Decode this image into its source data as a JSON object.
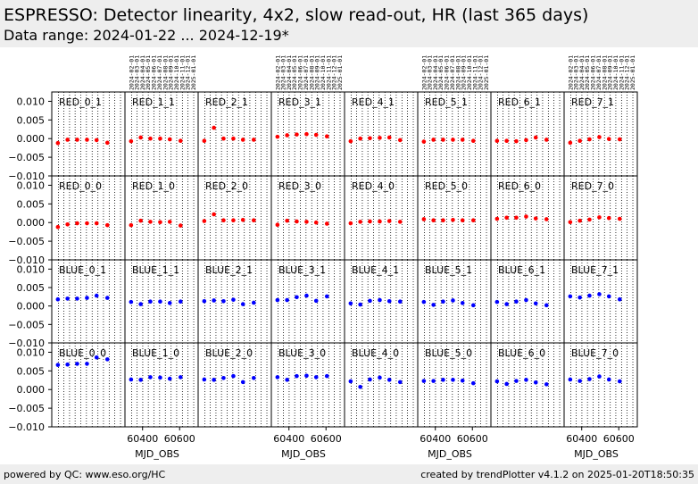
{
  "page": {
    "title": "ESPRESSO: Detector linearity, 4x2, slow read-out, HR (last 365 days)",
    "subtitle": "Data range: 2024-01-22 ... 2024-12-19*",
    "footer_left": "powered by QC: www.eso.org/HC",
    "footer_right": "created by trendPlotter v4.1.2 on 2025-01-20T18:50:35"
  },
  "colors": {
    "red_series": "#ff0000",
    "blue_series": "#0000ff",
    "header_bg": "#eeeeee"
  },
  "chart_data": {
    "type": "scatter",
    "layout": "grid 4 rows x 8 columns, shared axes",
    "xlabel": "MJD_OBS",
    "x_ticks": [
      60400,
      60600
    ],
    "x_tick_labels": [
      "60400",
      "60600"
    ],
    "xlim": [
      60305,
      60700
    ],
    "ylim": [
      -0.01,
      0.0125
    ],
    "y_ticks": [
      -0.01,
      -0.005,
      0.0,
      0.005,
      0.01
    ],
    "y_tick_labels": [
      "−0.010",
      "−0.005",
      "0.000",
      "0.005",
      "0.010"
    ],
    "grid": "vertical dotted lines",
    "date_ticks": [
      "2024-02-01",
      "2024-03-01",
      "2024-04-01",
      "2024-05-01",
      "2024-06-01",
      "2024-07-01",
      "2024-08-01",
      "2024-09-01",
      "2024-10-01",
      "2024-11-01",
      "2024-12-01",
      "2025-01-01",
      "2025-02-01"
    ],
    "date_tick_mjd": [
      60341,
      60370,
      60401,
      60431,
      60462,
      60492,
      60523,
      60554,
      60584,
      60615,
      60645,
      60676,
      60707
    ],
    "x": [
      60338,
      60390,
      60442,
      60495,
      60547,
      60605
    ],
    "panels": [
      {
        "label": "RED_0_1",
        "row": 0,
        "col": 0,
        "color": "red",
        "y": [
          -0.0012,
          -0.0003,
          -0.0003,
          -0.0003,
          -0.0004,
          -0.0011
        ]
      },
      {
        "label": "RED_1_1",
        "row": 0,
        "col": 1,
        "color": "red",
        "y": [
          -0.0007,
          0.0003,
          0.0,
          0.0,
          -0.0002,
          -0.0006
        ]
      },
      {
        "label": "RED_2_1",
        "row": 0,
        "col": 2,
        "color": "red",
        "y": [
          -0.0006,
          0.0029,
          0.0,
          0.0,
          -0.0003,
          -0.0003
        ]
      },
      {
        "label": "RED_3_1",
        "row": 0,
        "col": 3,
        "color": "red",
        "y": [
          0.0005,
          0.0009,
          0.0011,
          0.0012,
          0.001,
          0.0006
        ]
      },
      {
        "label": "RED_4_1",
        "row": 0,
        "col": 4,
        "color": "red",
        "y": [
          -0.0007,
          0.0,
          0.0001,
          0.0002,
          0.0003,
          -0.0004
        ]
      },
      {
        "label": "RED_5_1",
        "row": 0,
        "col": 5,
        "color": "red",
        "y": [
          -0.0008,
          -0.0003,
          -0.0003,
          -0.0003,
          -0.0003,
          -0.0006
        ]
      },
      {
        "label": "RED_6_1",
        "row": 0,
        "col": 6,
        "color": "red",
        "y": [
          -0.0006,
          -0.0006,
          -0.0007,
          -0.0004,
          0.0003,
          -0.0003
        ]
      },
      {
        "label": "RED_7_1",
        "row": 0,
        "col": 7,
        "color": "red",
        "y": [
          -0.0011,
          -0.0006,
          -0.0002,
          0.0004,
          -0.0001,
          -0.0002
        ]
      },
      {
        "label": "RED_0_0",
        "row": 1,
        "col": 0,
        "color": "red",
        "y": [
          -0.0012,
          -0.0005,
          -0.0002,
          -0.0002,
          -0.0002,
          -0.0007
        ]
      },
      {
        "label": "RED_1_0",
        "row": 1,
        "col": 1,
        "color": "red",
        "y": [
          -0.0007,
          0.0005,
          0.0002,
          0.0001,
          0.0002,
          -0.0008
        ]
      },
      {
        "label": "RED_2_0",
        "row": 1,
        "col": 2,
        "color": "red",
        "y": [
          0.0004,
          0.0022,
          0.0006,
          0.0006,
          0.0007,
          0.0006
        ]
      },
      {
        "label": "RED_3_0",
        "row": 1,
        "col": 3,
        "color": "red",
        "y": [
          -0.0006,
          0.0005,
          0.0003,
          0.0002,
          0.0,
          -0.0003
        ]
      },
      {
        "label": "RED_4_0",
        "row": 1,
        "col": 4,
        "color": "red",
        "y": [
          -0.0002,
          0.0002,
          0.0003,
          0.0003,
          0.0004,
          0.0002
        ]
      },
      {
        "label": "RED_5_0",
        "row": 1,
        "col": 5,
        "color": "red",
        "y": [
          0.0009,
          0.0006,
          0.0006,
          0.0007,
          0.0006,
          0.0006
        ]
      },
      {
        "label": "RED_6_0",
        "row": 1,
        "col": 6,
        "color": "red",
        "y": [
          0.001,
          0.0013,
          0.0013,
          0.0016,
          0.0011,
          0.0009
        ]
      },
      {
        "label": "RED_7_0",
        "row": 1,
        "col": 7,
        "color": "red",
        "y": [
          0.0001,
          0.0005,
          0.0008,
          0.0014,
          0.0012,
          0.001
        ]
      },
      {
        "label": "BLUE_0_1",
        "row": 2,
        "col": 0,
        "color": "blue",
        "y": [
          0.0018,
          0.002,
          0.002,
          0.0022,
          0.0028,
          0.0022
        ]
      },
      {
        "label": "BLUE_1_1",
        "row": 2,
        "col": 1,
        "color": "blue",
        "y": [
          0.0011,
          0.0005,
          0.0012,
          0.0012,
          0.0008,
          0.0012
        ]
      },
      {
        "label": "BLUE_2_1",
        "row": 2,
        "col": 2,
        "color": "blue",
        "y": [
          0.0013,
          0.0015,
          0.0013,
          0.0017,
          0.0005,
          0.0009
        ]
      },
      {
        "label": "BLUE_3_1",
        "row": 2,
        "col": 3,
        "color": "blue",
        "y": [
          0.0016,
          0.0016,
          0.0024,
          0.0028,
          0.0014,
          0.0026
        ]
      },
      {
        "label": "BLUE_4_1",
        "row": 2,
        "col": 4,
        "color": "blue",
        "y": [
          0.0007,
          0.0004,
          0.0014,
          0.0016,
          0.0013,
          0.0012
        ]
      },
      {
        "label": "BLUE_5_1",
        "row": 2,
        "col": 5,
        "color": "blue",
        "y": [
          0.0011,
          0.0003,
          0.0012,
          0.0015,
          0.0008,
          0.0002
        ]
      },
      {
        "label": "BLUE_6_1",
        "row": 2,
        "col": 6,
        "color": "blue",
        "y": [
          0.0011,
          0.0005,
          0.0012,
          0.0016,
          0.0007,
          0.0002
        ]
      },
      {
        "label": "BLUE_7_1",
        "row": 2,
        "col": 7,
        "color": "blue",
        "y": [
          0.0026,
          0.0023,
          0.0028,
          0.0032,
          0.0026,
          0.0018
        ]
      },
      {
        "label": "BLUE_0_0",
        "row": 3,
        "col": 0,
        "color": "blue",
        "y": [
          0.0066,
          0.0067,
          0.0069,
          0.0069,
          0.0086,
          0.0081
        ]
      },
      {
        "label": "BLUE_1_0",
        "row": 3,
        "col": 1,
        "color": "blue",
        "y": [
          0.0027,
          0.0026,
          0.0033,
          0.0032,
          0.0029,
          0.0033
        ]
      },
      {
        "label": "BLUE_2_0",
        "row": 3,
        "col": 2,
        "color": "blue",
        "y": [
          0.0027,
          0.0026,
          0.0031,
          0.0036,
          0.002,
          0.0031
        ]
      },
      {
        "label": "BLUE_3_0",
        "row": 3,
        "col": 3,
        "color": "blue",
        "y": [
          0.0033,
          0.0026,
          0.0036,
          0.0037,
          0.0033,
          0.0036
        ]
      },
      {
        "label": "BLUE_4_0",
        "row": 3,
        "col": 4,
        "color": "blue",
        "y": [
          0.0022,
          0.0007,
          0.0027,
          0.0032,
          0.0026,
          0.002
        ]
      },
      {
        "label": "BLUE_5_0",
        "row": 3,
        "col": 5,
        "color": "blue",
        "y": [
          0.0023,
          0.0023,
          0.0026,
          0.0026,
          0.0024,
          0.0017
        ]
      },
      {
        "label": "BLUE_6_0",
        "row": 3,
        "col": 6,
        "color": "blue",
        "y": [
          0.0022,
          0.0015,
          0.0023,
          0.0026,
          0.0019,
          0.0014
        ]
      },
      {
        "label": "BLUE_7_0",
        "row": 3,
        "col": 7,
        "color": "blue",
        "y": [
          0.0027,
          0.0023,
          0.0028,
          0.0035,
          0.0027,
          0.0022
        ]
      }
    ]
  }
}
